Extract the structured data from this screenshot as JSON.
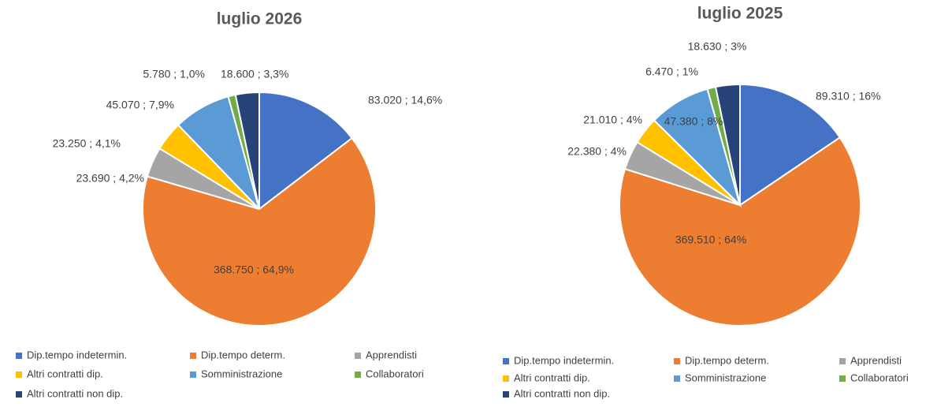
{
  "chart_data": [
    {
      "type": "pie",
      "title": "luglio 2026",
      "categories": [
        "Dip.tempo indetermin.",
        "Dip.tempo determ.",
        "Apprendisti",
        "Altri contratti dip.",
        "Somministrazione",
        "Collaboratori",
        "Altri contratti non dip."
      ],
      "values": [
        83020,
        368750,
        23690,
        23250,
        45070,
        5780,
        18600
      ],
      "value_labels": [
        "83.020 ; 14,6%",
        "368.750 ; 64,9%",
        "23.690 ; 4,2%",
        "23.250 ; 4,1%",
        "45.070 ; 7,9%",
        "5.780 ; 1,0%",
        "18.600 ; 3,3%"
      ],
      "colors": [
        "#4472c4",
        "#ed7d31",
        "#a5a5a5",
        "#ffc000",
        "#5b9bd5",
        "#70ad47",
        "#264478"
      ]
    },
    {
      "type": "pie",
      "title": "luglio 2025",
      "categories": [
        "Dip.tempo indetermin.",
        "Dip.tempo determ.",
        "Apprendisti",
        "Altri contratti dip.",
        "Somministrazione",
        "Collaboratori",
        "Altri contratti non dip."
      ],
      "values": [
        89310,
        369510,
        22380,
        21010,
        47380,
        6470,
        18630
      ],
      "value_labels": [
        "89.310 ; 16%",
        "369.510 ; 64%",
        "22.380 ; 4%",
        "21.010 ; 4%",
        "47.380 ; 8%",
        "6.470 ; 1%",
        "18.630 ; 3%"
      ],
      "colors": [
        "#4472c4",
        "#ed7d31",
        "#a5a5a5",
        "#ffc000",
        "#5b9bd5",
        "#70ad47",
        "#264478"
      ]
    }
  ]
}
